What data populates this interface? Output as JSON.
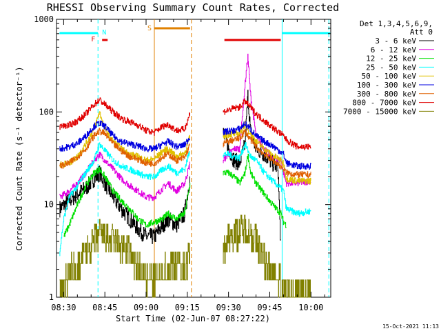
{
  "chart_data": {
    "type": "line",
    "title": "RHESSI Observing Summary Count Rates, Corrected",
    "xlabel": "Start Time (02-Jun-07 08:27:22)",
    "ylabel": "Corrected Count Rate (s⁻¹ detector⁻¹)",
    "yscale": "log",
    "ylim": [
      1,
      1000
    ],
    "xlim_minutes": [
      27.4,
      127.2
    ],
    "x_ticks": [
      {
        "label": "08:30",
        "minute": 30
      },
      {
        "label": "08:45",
        "minute": 45
      },
      {
        "label": "09:00",
        "minute": 60
      },
      {
        "label": "09:15",
        "minute": 75
      },
      {
        "label": "09:30",
        "minute": 90
      },
      {
        "label": "09:45",
        "minute": 105
      },
      {
        "label": "10:00",
        "minute": 120
      }
    ],
    "y_ticks": [
      {
        "label": "1",
        "value": 1
      },
      {
        "label": "10",
        "value": 10
      },
      {
        "label": "100",
        "value": 100
      },
      {
        "label": "1000",
        "value": 1000
      }
    ],
    "legend_header": [
      "Det 1,3,4,5,6,9,",
      "Att 0"
    ],
    "legend_position": "right",
    "timestamp": "15-Oct-2021 11:13",
    "data_gap_minutes": [
      76.5,
      88
    ],
    "series": [
      {
        "name": "3 - 6 keV",
        "color": "#000000",
        "seg1": [
          [
            28.5,
            9
          ],
          [
            32,
            11
          ],
          [
            35,
            13
          ],
          [
            38,
            15
          ],
          [
            41,
            19
          ],
          [
            43,
            22
          ],
          [
            45,
            17
          ],
          [
            48,
            12
          ],
          [
            51,
            9
          ],
          [
            54,
            7
          ],
          [
            57,
            5.5
          ],
          [
            60,
            4.5
          ],
          [
            63,
            4.5
          ],
          [
            66,
            6
          ],
          [
            68,
            7
          ],
          [
            71,
            6
          ],
          [
            74,
            8
          ],
          [
            76,
            20
          ]
        ],
        "seg2": [
          [
            88,
            60
          ],
          [
            90,
            40
          ],
          [
            92,
            30
          ],
          [
            94,
            28
          ],
          [
            96,
            45
          ],
          [
            97,
            150
          ],
          [
            98,
            60
          ],
          [
            100,
            40
          ],
          [
            103,
            35
          ],
          [
            106,
            28
          ],
          [
            108,
            25
          ],
          [
            109,
            3
          ]
        ]
      },
      {
        "name": "6 - 12 keV",
        "color": "#e000e0",
        "seg1": [
          [
            28.5,
            12
          ],
          [
            32,
            14
          ],
          [
            35,
            17
          ],
          [
            38,
            22
          ],
          [
            41,
            30
          ],
          [
            43,
            35
          ],
          [
            45,
            30
          ],
          [
            48,
            24
          ],
          [
            51,
            19
          ],
          [
            54,
            16
          ],
          [
            57,
            14
          ],
          [
            60,
            12
          ],
          [
            63,
            12
          ],
          [
            66,
            15
          ],
          [
            68,
            17
          ],
          [
            71,
            14
          ],
          [
            74,
            17
          ],
          [
            76,
            28
          ]
        ],
        "seg2": [
          [
            88,
            30
          ],
          [
            90,
            35
          ],
          [
            92,
            40
          ],
          [
            94,
            40
          ],
          [
            96,
            200
          ],
          [
            97,
            400
          ],
          [
            98,
            150
          ],
          [
            100,
            55
          ],
          [
            103,
            40
          ],
          [
            106,
            32
          ],
          [
            109,
            30
          ],
          [
            110,
            22
          ],
          [
            111,
            17
          ],
          [
            115,
            17
          ],
          [
            120,
            18
          ]
        ]
      },
      {
        "name": "12 - 25 keV",
        "color": "#00e000",
        "seg1": [
          [
            30,
            4.5
          ],
          [
            32,
            6
          ],
          [
            35,
            10
          ],
          [
            38,
            16
          ],
          [
            41,
            22
          ],
          [
            43,
            24
          ],
          [
            45,
            20
          ],
          [
            48,
            14
          ],
          [
            51,
            11
          ],
          [
            54,
            9
          ],
          [
            57,
            7
          ],
          [
            60,
            6
          ],
          [
            63,
            6.5
          ],
          [
            66,
            7
          ],
          [
            68,
            8
          ],
          [
            71,
            7
          ],
          [
            74,
            8
          ],
          [
            76,
            17
          ]
        ],
        "seg2": [
          [
            88,
            22
          ],
          [
            90,
            22
          ],
          [
            92,
            20
          ],
          [
            94,
            17
          ],
          [
            96,
            22
          ],
          [
            97,
            35
          ],
          [
            98,
            22
          ],
          [
            100,
            17
          ],
          [
            103,
            13
          ],
          [
            106,
            10
          ],
          [
            109,
            8
          ],
          [
            110,
            6.5
          ],
          [
            111,
            6
          ]
        ]
      },
      {
        "name": "25 - 50 keV",
        "color": "#00ffff",
        "seg1": [
          [
            28.5,
            3
          ],
          [
            30,
            7
          ],
          [
            32,
            12
          ],
          [
            35,
            16
          ],
          [
            38,
            22
          ],
          [
            41,
            30
          ],
          [
            43,
            45
          ],
          [
            45,
            38
          ],
          [
            48,
            30
          ],
          [
            51,
            26
          ],
          [
            54,
            24
          ],
          [
            57,
            22
          ],
          [
            60,
            20
          ],
          [
            63,
            20
          ],
          [
            66,
            24
          ],
          [
            68,
            26
          ],
          [
            71,
            22
          ],
          [
            74,
            24
          ],
          [
            76,
            40
          ]
        ],
        "seg2": [
          [
            88,
            35
          ],
          [
            90,
            35
          ],
          [
            92,
            33
          ],
          [
            94,
            32
          ],
          [
            96,
            45
          ],
          [
            98,
            33
          ],
          [
            100,
            30
          ],
          [
            103,
            22
          ],
          [
            106,
            18
          ],
          [
            109,
            15
          ],
          [
            110,
            14
          ],
          [
            111,
            9
          ],
          [
            115,
            8
          ],
          [
            120,
            8.5
          ]
        ]
      },
      {
        "name": "50 - 100 keV",
        "color": "#e0c000",
        "seg1": [
          [
            28.5,
            27
          ],
          [
            32,
            28
          ],
          [
            35,
            33
          ],
          [
            38,
            45
          ],
          [
            41,
            65
          ],
          [
            43,
            100
          ],
          [
            45,
            65
          ],
          [
            48,
            48
          ],
          [
            51,
            40
          ],
          [
            54,
            35
          ],
          [
            57,
            33
          ],
          [
            60,
            30
          ],
          [
            63,
            31
          ],
          [
            66,
            38
          ],
          [
            68,
            40
          ],
          [
            71,
            33
          ],
          [
            74,
            36
          ],
          [
            76,
            55
          ]
        ],
        "seg2": [
          [
            88,
            55
          ],
          [
            90,
            57
          ],
          [
            92,
            58
          ],
          [
            94,
            58
          ],
          [
            96,
            75
          ],
          [
            98,
            58
          ],
          [
            100,
            48
          ],
          [
            103,
            40
          ],
          [
            106,
            34
          ],
          [
            109,
            30
          ],
          [
            110,
            28
          ],
          [
            111,
            19
          ],
          [
            115,
            18
          ],
          [
            120,
            18
          ]
        ]
      },
      {
        "name": "100 - 300 keV",
        "color": "#0000e0",
        "seg1": [
          [
            28.5,
            40
          ],
          [
            32,
            42
          ],
          [
            35,
            46
          ],
          [
            38,
            55
          ],
          [
            41,
            70
          ],
          [
            43,
            76
          ],
          [
            45,
            70
          ],
          [
            48,
            55
          ],
          [
            51,
            48
          ],
          [
            54,
            45
          ],
          [
            57,
            43
          ],
          [
            60,
            40
          ],
          [
            63,
            40
          ],
          [
            66,
            45
          ],
          [
            68,
            48
          ],
          [
            71,
            42
          ],
          [
            74,
            44
          ],
          [
            76,
            55
          ]
        ],
        "seg2": [
          [
            88,
            60
          ],
          [
            90,
            62
          ],
          [
            92,
            63
          ],
          [
            94,
            66
          ],
          [
            96,
            75
          ],
          [
            98,
            65
          ],
          [
            100,
            55
          ],
          [
            103,
            48
          ],
          [
            106,
            43
          ],
          [
            109,
            37
          ],
          [
            110,
            35
          ],
          [
            111,
            28
          ],
          [
            115,
            26
          ],
          [
            120,
            26
          ]
        ]
      },
      {
        "name": "300 - 800 keV",
        "color": "#e06000",
        "seg1": [
          [
            28.5,
            26
          ],
          [
            32,
            28
          ],
          [
            35,
            33
          ],
          [
            38,
            40
          ],
          [
            41,
            55
          ],
          [
            43,
            62
          ],
          [
            45,
            58
          ],
          [
            48,
            45
          ],
          [
            51,
            38
          ],
          [
            54,
            33
          ],
          [
            57,
            31
          ],
          [
            60,
            28
          ],
          [
            63,
            28
          ],
          [
            66,
            33
          ],
          [
            68,
            35
          ],
          [
            71,
            30
          ],
          [
            74,
            32
          ],
          [
            76,
            45
          ]
        ],
        "seg2": [
          [
            88,
            45
          ],
          [
            90,
            48
          ],
          [
            92,
            50
          ],
          [
            94,
            52
          ],
          [
            96,
            62
          ],
          [
            98,
            50
          ],
          [
            100,
            42
          ],
          [
            103,
            35
          ],
          [
            106,
            30
          ],
          [
            109,
            26
          ],
          [
            110,
            24
          ],
          [
            111,
            22
          ],
          [
            115,
            21
          ],
          [
            120,
            21
          ]
        ]
      },
      {
        "name": "800 - 7000 keV",
        "color": "#e00000",
        "seg1": [
          [
            28.5,
            70
          ],
          [
            32,
            72
          ],
          [
            35,
            80
          ],
          [
            38,
            95
          ],
          [
            41,
            120
          ],
          [
            43,
            135
          ],
          [
            45,
            120
          ],
          [
            48,
            100
          ],
          [
            51,
            85
          ],
          [
            54,
            78
          ],
          [
            57,
            72
          ],
          [
            60,
            63
          ],
          [
            63,
            60
          ],
          [
            66,
            70
          ],
          [
            68,
            73
          ],
          [
            71,
            63
          ],
          [
            74,
            65
          ],
          [
            76,
            100
          ]
        ],
        "seg2": [
          [
            88,
            100
          ],
          [
            90,
            105
          ],
          [
            92,
            110
          ],
          [
            94,
            112
          ],
          [
            96,
            130
          ],
          [
            98,
            112
          ],
          [
            100,
            95
          ],
          [
            103,
            80
          ],
          [
            106,
            68
          ],
          [
            109,
            58
          ],
          [
            110,
            55
          ],
          [
            111,
            50
          ],
          [
            115,
            42
          ],
          [
            120,
            42
          ]
        ]
      },
      {
        "name": "7000 - 15000 keV",
        "color": "#808000",
        "seg1": [
          [
            28.5,
            1
          ],
          [
            32,
            1.8
          ],
          [
            35,
            2
          ],
          [
            38,
            3
          ],
          [
            41,
            4
          ],
          [
            43,
            5
          ],
          [
            45,
            4.5
          ],
          [
            48,
            4
          ],
          [
            51,
            3.5
          ],
          [
            54,
            3
          ],
          [
            57,
            2
          ],
          [
            60,
            1.5
          ],
          [
            63,
            1.5
          ],
          [
            66,
            1.8
          ],
          [
            68,
            2
          ],
          [
            71,
            2.5
          ],
          [
            74,
            2
          ],
          [
            76,
            3
          ]
        ],
        "seg2": [
          [
            88,
            3
          ],
          [
            90,
            4.5
          ],
          [
            92,
            5
          ],
          [
            94,
            5
          ],
          [
            96,
            5.5
          ],
          [
            98,
            5
          ],
          [
            100,
            4
          ],
          [
            103,
            2.5
          ],
          [
            106,
            2
          ],
          [
            108,
            1.5
          ],
          [
            110,
            1.2
          ],
          [
            111,
            1
          ],
          [
            115,
            1
          ],
          [
            120,
            1
          ]
        ]
      }
    ],
    "annotations": [
      {
        "label": "N",
        "color": "#00ffff",
        "at_minute": 42.5
      },
      {
        "label": "F",
        "color": "#e00000",
        "at_minute": 43
      },
      {
        "label": "S",
        "color": "#e08000",
        "at_minute": 63
      }
    ],
    "state_bars": [
      {
        "name": "night",
        "color": "#00ffff",
        "from": 28.5,
        "to": 42.5
      },
      {
        "name": "flare",
        "color": "#e00000",
        "from": 44,
        "to": 46
      },
      {
        "name": "saa",
        "color": "#e08000",
        "from": 63,
        "to": 76
      },
      {
        "name": "flare",
        "color": "#e00000",
        "from": 88.5,
        "to": 109
      },
      {
        "name": "night",
        "color": "#00ffff",
        "from": 109.5,
        "to": 127
      }
    ],
    "vlines": [
      {
        "minute": 42.5,
        "color": "#00ffff",
        "style": "dashed"
      },
      {
        "minute": 63,
        "color": "#e08000",
        "style": "solid"
      },
      {
        "minute": 76.5,
        "color": "#e08000",
        "style": "dashed"
      },
      {
        "minute": 109.5,
        "color": "#00ffff",
        "style": "solid"
      },
      {
        "minute": 126.5,
        "color": "#00ffff",
        "style": "dashed"
      }
    ]
  }
}
